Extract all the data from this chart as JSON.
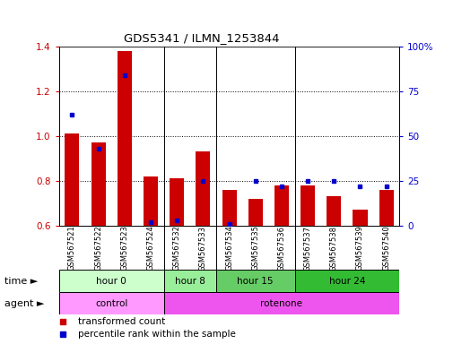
{
  "title": "GDS5341 / ILMN_1253844",
  "samples": [
    "GSM567521",
    "GSM567522",
    "GSM567523",
    "GSM567524",
    "GSM567532",
    "GSM567533",
    "GSM567534",
    "GSM567535",
    "GSM567536",
    "GSM567537",
    "GSM567538",
    "GSM567539",
    "GSM567540"
  ],
  "red_values": [
    1.01,
    0.97,
    1.38,
    0.82,
    0.81,
    0.93,
    0.76,
    0.72,
    0.78,
    0.78,
    0.73,
    0.67,
    0.76
  ],
  "blue_percentile": [
    62,
    43,
    84,
    2,
    3,
    25,
    1,
    25,
    22,
    25,
    25,
    22,
    22
  ],
  "ylim_left": [
    0.6,
    1.4
  ],
  "ylim_right": [
    0,
    100
  ],
  "yticks_left": [
    0.6,
    0.8,
    1.0,
    1.2,
    1.4
  ],
  "yticks_right": [
    0,
    25,
    50,
    75,
    100
  ],
  "ytick_labels_right": [
    "0",
    "25",
    "50",
    "75",
    "100%"
  ],
  "bar_color": "#cc0000",
  "dot_color": "#0000cc",
  "grid_lines": [
    0.8,
    1.0,
    1.2
  ],
  "time_groups": [
    {
      "label": "hour 0",
      "start": 0,
      "end": 4,
      "color": "#ccffcc"
    },
    {
      "label": "hour 8",
      "start": 4,
      "end": 6,
      "color": "#99ee99"
    },
    {
      "label": "hour 15",
      "start": 6,
      "end": 9,
      "color": "#66cc66"
    },
    {
      "label": "hour 24",
      "start": 9,
      "end": 13,
      "color": "#33bb33"
    }
  ],
  "agent_groups": [
    {
      "label": "control",
      "start": 0,
      "end": 4,
      "color": "#ff99ff"
    },
    {
      "label": "rotenone",
      "start": 4,
      "end": 13,
      "color": "#ee55ee"
    }
  ],
  "group_boundaries": [
    4,
    6,
    9
  ],
  "legend_red": "transformed count",
  "legend_blue": "percentile rank within the sample",
  "time_label": "time",
  "agent_label": "agent",
  "bar_width": 0.55,
  "ybaseline": 0.6
}
